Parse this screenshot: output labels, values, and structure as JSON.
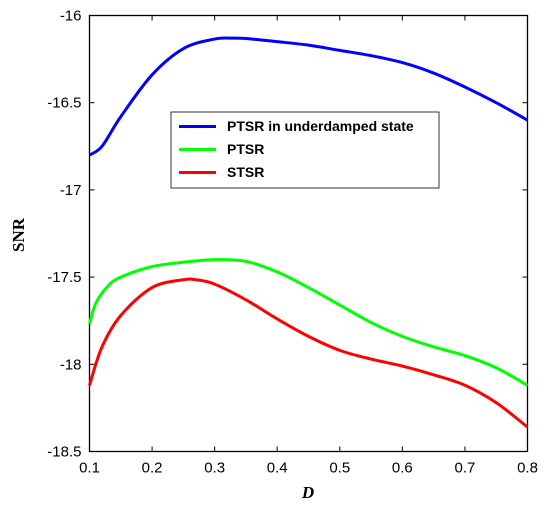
{
  "chart_data": {
    "type": "line",
    "xlabel": "D",
    "ylabel": "SNR",
    "xlim": [
      0.1,
      0.8
    ],
    "ylim": [
      -18.5,
      -16
    ],
    "xticks": [
      "0.1",
      "0.2",
      "0.3",
      "0.4",
      "0.5",
      "0.6",
      "0.7",
      "0.8"
    ],
    "yticks": [
      "-16",
      "-16.5",
      "-17",
      "-17.5",
      "-18",
      "-18.5"
    ],
    "grid": false,
    "legend_position": "upper-center",
    "series": [
      {
        "name": "PTSR in underdamped state",
        "color": "#0000ff",
        "x": [
          0.1,
          0.12,
          0.15,
          0.2,
          0.25,
          0.3,
          0.33,
          0.35,
          0.4,
          0.45,
          0.5,
          0.55,
          0.6,
          0.65,
          0.7,
          0.75,
          0.8
        ],
        "y": [
          -16.8,
          -16.75,
          -16.58,
          -16.34,
          -16.19,
          -16.135,
          -16.13,
          -16.132,
          -16.15,
          -16.17,
          -16.2,
          -16.23,
          -16.27,
          -16.33,
          -16.41,
          -16.5,
          -16.6
        ]
      },
      {
        "name": "PTSR",
        "color": "#00ff00",
        "x": [
          0.1,
          0.11,
          0.13,
          0.15,
          0.2,
          0.25,
          0.3,
          0.35,
          0.4,
          0.45,
          0.5,
          0.55,
          0.6,
          0.65,
          0.7,
          0.75,
          0.8
        ],
        "y": [
          -17.77,
          -17.65,
          -17.55,
          -17.5,
          -17.44,
          -17.415,
          -17.4,
          -17.41,
          -17.47,
          -17.56,
          -17.66,
          -17.76,
          -17.84,
          -17.9,
          -17.95,
          -18.02,
          -18.12
        ]
      },
      {
        "name": "STSR",
        "color": "#ff0000",
        "x": [
          0.1,
          0.12,
          0.15,
          0.2,
          0.25,
          0.27,
          0.3,
          0.35,
          0.4,
          0.45,
          0.5,
          0.55,
          0.6,
          0.65,
          0.7,
          0.75,
          0.8
        ],
        "y": [
          -18.12,
          -17.9,
          -17.72,
          -17.56,
          -17.515,
          -17.515,
          -17.54,
          -17.63,
          -17.74,
          -17.84,
          -17.92,
          -17.97,
          -18.01,
          -18.06,
          -18.12,
          -18.22,
          -18.36
        ]
      }
    ]
  }
}
